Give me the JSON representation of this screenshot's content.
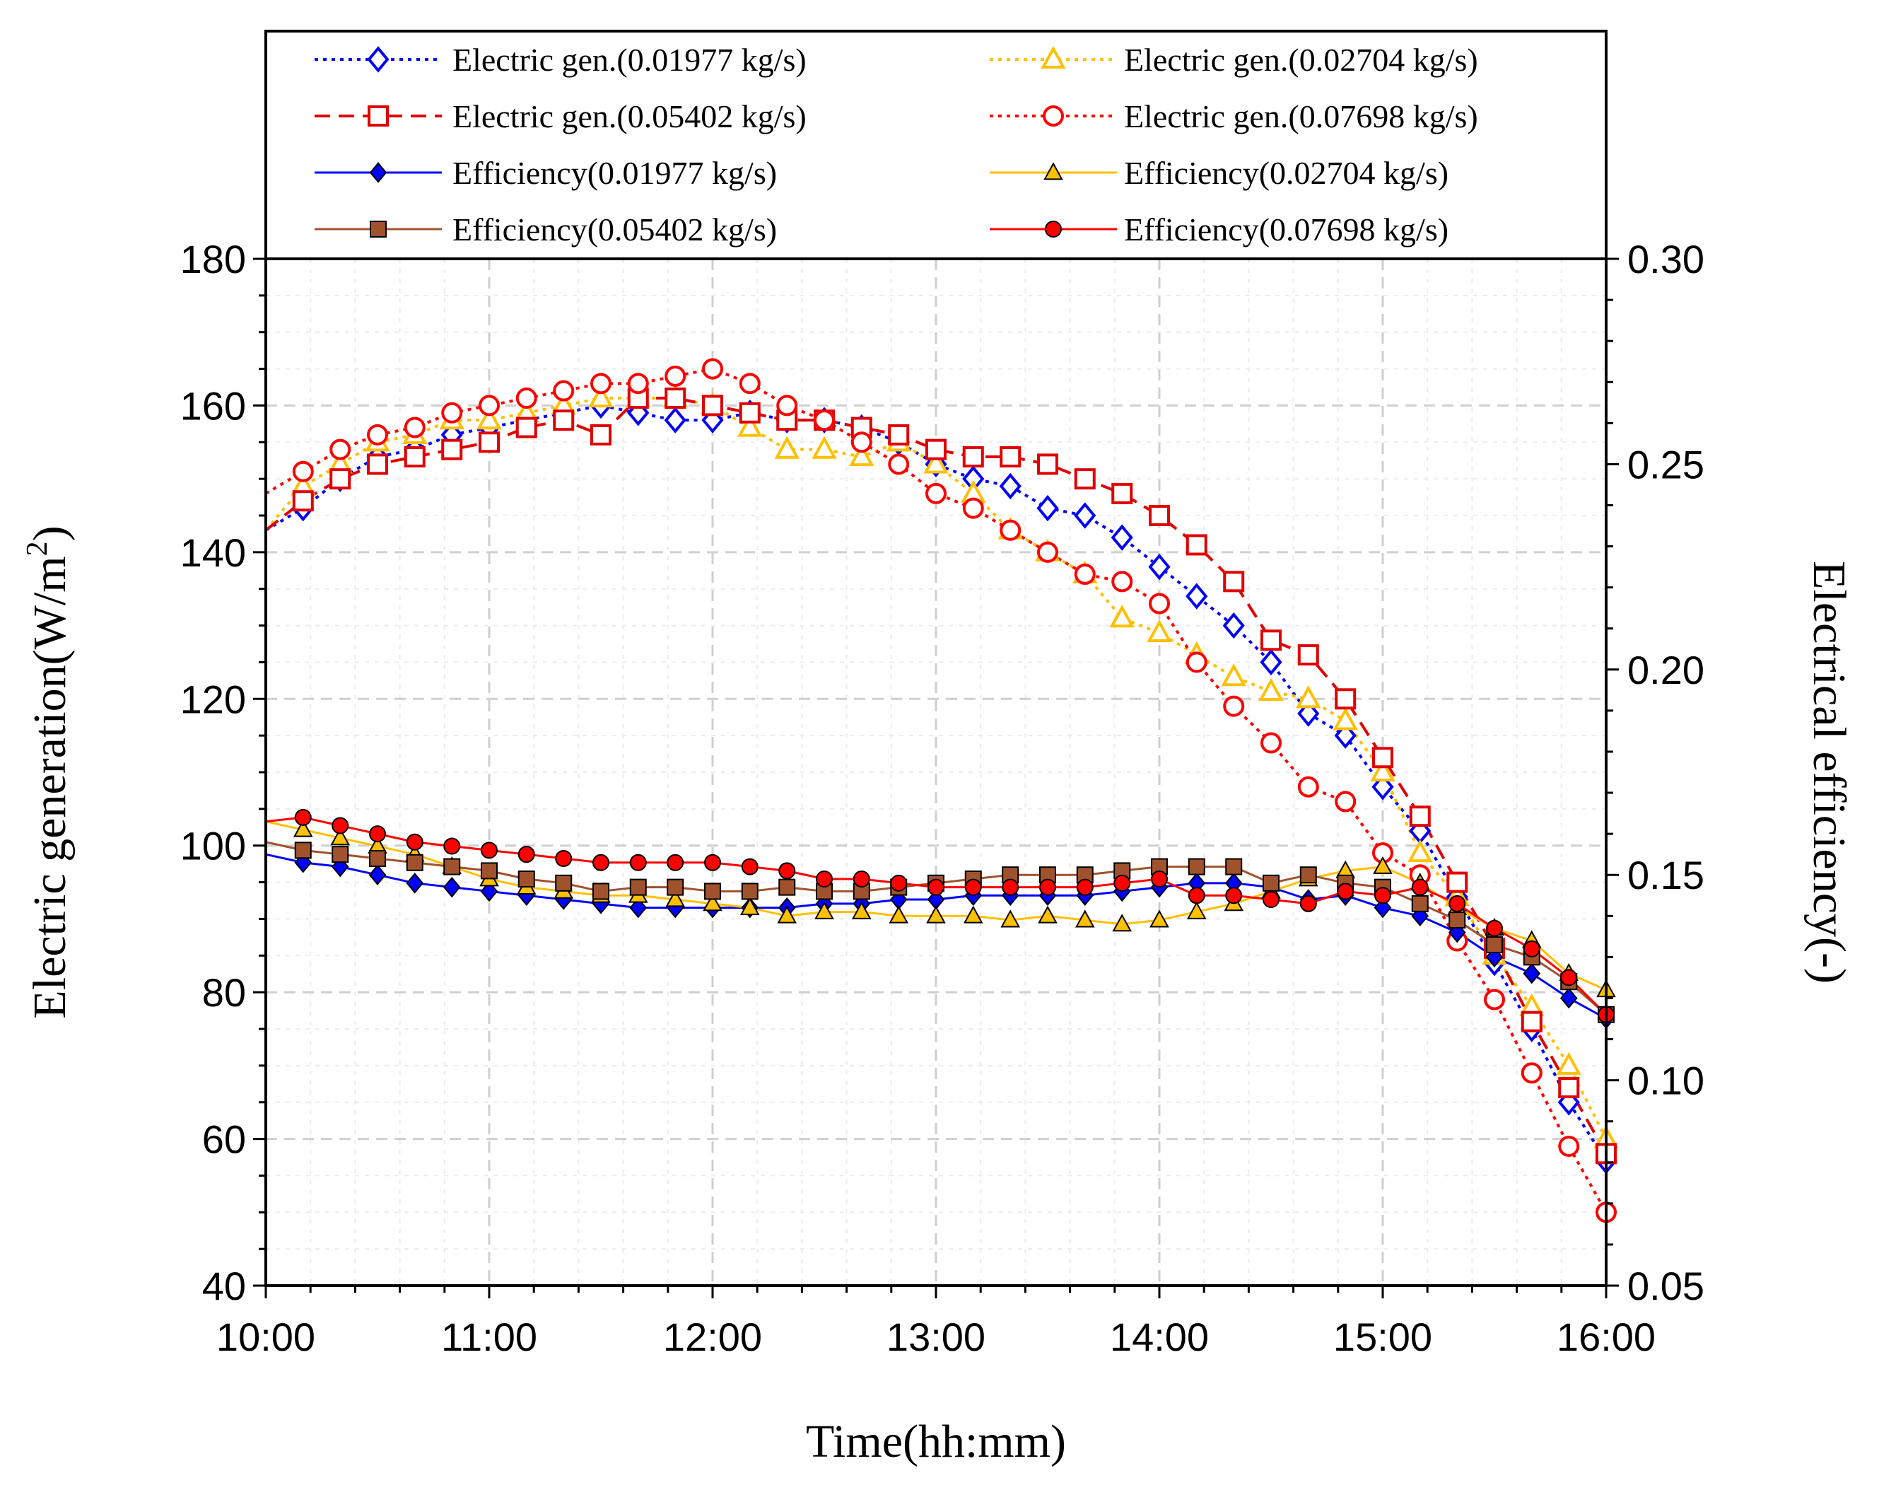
{
  "chart_data": {
    "type": "line",
    "title": "",
    "xlabel": "Time(hh:mm)",
    "ylabel": "Electric generation(W/m²)",
    "ylabel_base": "Electric generation(W/m",
    "ylabel_sup": "2",
    "ylabel_close": ")",
    "y2label": "Electrical efficiency(-)",
    "x_ticks": [
      "10:00",
      "11:00",
      "12:00",
      "13:00",
      "14:00",
      "15:00",
      "16:00"
    ],
    "xlim": [
      0,
      6
    ],
    "ylim": [
      40,
      180
    ],
    "y_ticks": [
      "40",
      "60",
      "80",
      "100",
      "120",
      "140",
      "160",
      "180"
    ],
    "y2lim": [
      0.05,
      0.3
    ],
    "y2_ticks": [
      "0.05",
      "0.10",
      "0.15",
      "0.20",
      "0.25",
      "0.30"
    ],
    "grid": true,
    "legend_position": "top",
    "x_hours": [
      0.167,
      0.333,
      0.5,
      0.667,
      0.833,
      1.0,
      1.167,
      1.333,
      1.5,
      1.667,
      1.833,
      2.0,
      2.167,
      2.333,
      2.5,
      2.667,
      2.833,
      3.0,
      3.167,
      3.333,
      3.5,
      3.667,
      3.833,
      4.0,
      4.167,
      4.333,
      4.5,
      4.667,
      4.833,
      5.0,
      5.167,
      5.333,
      5.5,
      5.667,
      5.833,
      6.0
    ],
    "series": [
      {
        "name": "Electric gen.(0.01977 kg/s)",
        "axis": "left",
        "color": "#0000ff",
        "line": "dotted",
        "marker": "diamond",
        "filled": false,
        "start": 143,
        "values": [
          146,
          150,
          153,
          154,
          156,
          157,
          158,
          159,
          160,
          159,
          158,
          158,
          159,
          158,
          158,
          157,
          155,
          152,
          150,
          149,
          146,
          145,
          142,
          138,
          134,
          130,
          125,
          118,
          115,
          108,
          102,
          93,
          84,
          75,
          65,
          57
        ]
      },
      {
        "name": "Electric gen.(0.02704 kg/s)",
        "axis": "left",
        "color": "#ffc000",
        "line": "dotted",
        "marker": "triangle",
        "filled": false,
        "start": 143,
        "values": [
          149,
          152,
          155,
          156,
          158,
          158,
          159,
          160,
          161,
          161,
          161,
          160,
          157,
          154,
          154,
          153,
          155,
          152,
          148,
          143,
          140,
          137,
          131,
          129,
          126,
          123,
          121,
          120,
          117,
          110,
          99,
          93,
          85,
          78,
          70,
          60
        ]
      },
      {
        "name": "Electric gen.(0.05402 kg/s)",
        "axis": "left",
        "color": "#e00000",
        "line": "dashed",
        "marker": "square",
        "filled": false,
        "start": 143,
        "values": [
          147,
          150,
          152,
          153,
          154,
          155,
          157,
          158,
          156,
          161,
          161,
          160,
          159,
          158,
          158,
          157,
          156,
          154,
          153,
          153,
          152,
          150,
          148,
          145,
          141,
          136,
          128,
          126,
          120,
          112,
          104,
          95,
          86,
          76,
          67,
          58
        ]
      },
      {
        "name": "Electric gen.(0.07698 kg/s)",
        "axis": "left",
        "color": "#ff0000",
        "line": "dotted",
        "marker": "circle",
        "filled": false,
        "start": 148,
        "values": [
          151,
          154,
          156,
          157,
          159,
          160,
          161,
          162,
          163,
          163,
          164,
          165,
          163,
          160,
          158,
          155,
          152,
          148,
          146,
          143,
          140,
          137,
          136,
          133,
          125,
          119,
          114,
          108,
          106,
          99,
          96,
          87,
          79,
          69,
          59,
          50
        ]
      },
      {
        "name": "Efficiency(0.01977 kg/s)",
        "axis": "right",
        "color": "#0000ff",
        "line": "solid",
        "marker": "diamond",
        "filled": true,
        "start": 0.155,
        "values": [
          0.153,
          0.152,
          0.15,
          0.148,
          0.147,
          0.146,
          0.145,
          0.144,
          0.143,
          0.142,
          0.142,
          0.142,
          0.142,
          0.142,
          0.143,
          0.143,
          0.144,
          0.144,
          0.145,
          0.145,
          0.145,
          0.145,
          0.146,
          0.147,
          0.148,
          0.148,
          0.147,
          0.144,
          0.145,
          0.142,
          0.14,
          0.136,
          0.13,
          0.126,
          0.12,
          0.115
        ]
      },
      {
        "name": "Efficiency(0.02704 kg/s)",
        "axis": "right",
        "color": "#ffc000",
        "line": "solid",
        "marker": "triangle",
        "filled": true,
        "start": 0.163,
        "values": [
          0.161,
          0.159,
          0.157,
          0.155,
          0.152,
          0.149,
          0.147,
          0.146,
          0.145,
          0.145,
          0.144,
          0.143,
          0.142,
          0.14,
          0.141,
          0.141,
          0.14,
          0.14,
          0.14,
          0.139,
          0.14,
          0.139,
          0.138,
          0.139,
          0.141,
          0.143,
          0.146,
          0.149,
          0.151,
          0.152,
          0.148,
          0.142,
          0.137,
          0.134,
          0.126,
          0.122
        ]
      },
      {
        "name": "Efficiency(0.05402 kg/s)",
        "axis": "right",
        "color": "#a0522d",
        "line": "solid",
        "marker": "square",
        "filled": true,
        "start": 0.158,
        "values": [
          0.156,
          0.155,
          0.154,
          0.153,
          0.152,
          0.151,
          0.149,
          0.148,
          0.146,
          0.147,
          0.147,
          0.146,
          0.146,
          0.147,
          0.146,
          0.146,
          0.147,
          0.148,
          0.149,
          0.15,
          0.15,
          0.15,
          0.151,
          0.152,
          0.152,
          0.152,
          0.148,
          0.15,
          0.148,
          0.147,
          0.143,
          0.139,
          0.133,
          0.13,
          0.124,
          0.116
        ]
      },
      {
        "name": "Efficiency(0.07698 kg/s)",
        "axis": "right",
        "color": "#ff0000",
        "line": "solid",
        "marker": "circle",
        "filled": true,
        "start": 0.163,
        "values": [
          0.164,
          0.162,
          0.16,
          0.158,
          0.157,
          0.156,
          0.155,
          0.154,
          0.153,
          0.153,
          0.153,
          0.153,
          0.152,
          0.151,
          0.149,
          0.149,
          0.148,
          0.147,
          0.147,
          0.147,
          0.147,
          0.147,
          0.148,
          0.149,
          0.145,
          0.145,
          0.144,
          0.143,
          0.146,
          0.145,
          0.147,
          0.143,
          0.137,
          0.132,
          0.125,
          0.116
        ]
      }
    ]
  }
}
